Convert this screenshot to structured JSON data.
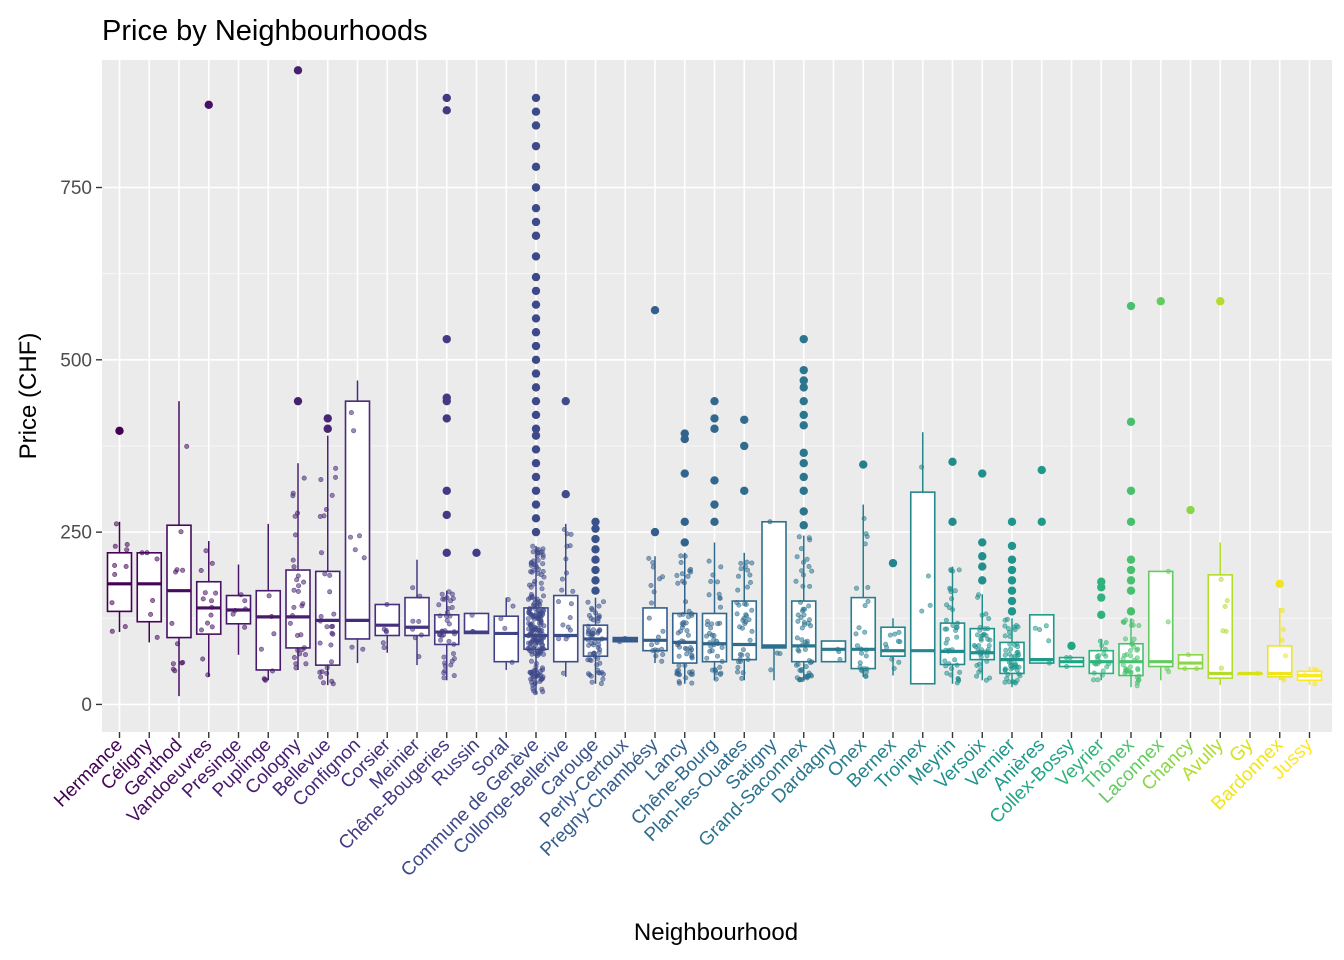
{
  "chart_data": {
    "type": "boxplot",
    "title": "Price by Neighbourhoods",
    "xlabel": "Neighbourhood",
    "ylabel": "Price (CHF)",
    "ylim": [
      -40,
      935
    ],
    "yticks": [
      0,
      250,
      500,
      750
    ],
    "grid": true,
    "legend": "none",
    "categories": [
      {
        "name": "Hermance",
        "color": "#440154",
        "q1": 135,
        "median": 175,
        "q3": 220,
        "lo": 105,
        "hi": 265,
        "outliers": [
          397
        ],
        "n": 10
      },
      {
        "name": "Céligny",
        "color": "#450559",
        "q1": 120,
        "median": 175,
        "q3": 220,
        "lo": 90,
        "hi": 220,
        "outliers": [],
        "n": 6
      },
      {
        "name": "Genthod",
        "color": "#460B5E",
        "q1": 97,
        "median": 165,
        "q3": 260,
        "lo": 12,
        "hi": 440,
        "outliers": [],
        "n": 12
      },
      {
        "name": "Vandoeuvres",
        "color": "#471063",
        "q1": 102,
        "median": 140,
        "q3": 178,
        "lo": 40,
        "hi": 237,
        "outliers": [
          870
        ],
        "n": 14
      },
      {
        "name": "Presinge",
        "color": "#481668",
        "q1": 117,
        "median": 137,
        "q3": 158,
        "lo": 72,
        "hi": 203,
        "outliers": [],
        "n": 6
      },
      {
        "name": "Puplinge",
        "color": "#481A6C",
        "q1": 50,
        "median": 127,
        "q3": 165,
        "lo": 35,
        "hi": 262,
        "outliers": [],
        "n": 8
      },
      {
        "name": "Cologny",
        "color": "#482071",
        "q1": 82,
        "median": 127,
        "q3": 195,
        "lo": 50,
        "hi": 350,
        "outliers": [
          440,
          920
        ],
        "n": 30
      },
      {
        "name": "Bellevue",
        "color": "#472575",
        "q1": 57,
        "median": 122,
        "q3": 193,
        "lo": 28,
        "hi": 390,
        "outliers": [
          400,
          415
        ],
        "n": 30
      },
      {
        "name": "Confignon",
        "color": "#472A7A",
        "q1": 95,
        "median": 122,
        "q3": 440,
        "lo": 60,
        "hi": 470,
        "outliers": [],
        "n": 8
      },
      {
        "name": "Corsier",
        "color": "#462F7E",
        "q1": 100,
        "median": 115,
        "q3": 145,
        "lo": 75,
        "hi": 145,
        "outliers": [],
        "n": 6
      },
      {
        "name": "Meinier",
        "color": "#453581",
        "q1": 100,
        "median": 112,
        "q3": 155,
        "lo": 57,
        "hi": 210,
        "outliers": [],
        "n": 8
      },
      {
        "name": "Chêne-Bougeries",
        "color": "#443983",
        "q1": 87,
        "median": 105,
        "q3": 130,
        "lo": 35,
        "hi": 165,
        "outliers": [
          220,
          275,
          310,
          415,
          440,
          445,
          530,
          862,
          880
        ],
        "n": 40
      },
      {
        "name": "Russin",
        "color": "#423E85",
        "q1": 103,
        "median": 105,
        "q3": 132,
        "lo": 103,
        "hi": 132,
        "outliers": [
          220
        ],
        "n": 3
      },
      {
        "name": "Soral",
        "color": "#404387",
        "q1": 62,
        "median": 103,
        "q3": 128,
        "lo": 50,
        "hi": 155,
        "outliers": [],
        "n": 5
      },
      {
        "name": "Commune de Genève",
        "color": "#3E4989",
        "q1": 80,
        "median": 100,
        "q3": 140,
        "lo": 15,
        "hi": 230,
        "outliers": [
          250,
          270,
          290,
          310,
          330,
          350,
          370,
          390,
          400,
          420,
          440,
          460,
          480,
          500,
          520,
          540,
          560,
          580,
          600,
          620,
          650,
          680,
          700,
          720,
          750,
          780,
          810,
          840,
          860,
          880
        ],
        "n": 200
      },
      {
        "name": "Collonge-Bellerive",
        "color": "#3C4D8A",
        "q1": 62,
        "median": 100,
        "q3": 158,
        "lo": 40,
        "hi": 262,
        "outliers": [
          305,
          440
        ],
        "n": 20
      },
      {
        "name": "Carouge",
        "color": "#3A528B",
        "q1": 70,
        "median": 95,
        "q3": 115,
        "lo": 30,
        "hi": 155,
        "outliers": [
          165,
          180,
          195,
          210,
          225,
          240,
          255,
          265
        ],
        "n": 60
      },
      {
        "name": "Perly-Certoux",
        "color": "#37598C",
        "q1": 91,
        "median": 94,
        "q3": 97,
        "lo": 91,
        "hi": 97,
        "outliers": [],
        "n": 3
      },
      {
        "name": "Pregny-Chambésy",
        "color": "#355E8D",
        "q1": 78,
        "median": 93,
        "q3": 140,
        "lo": 60,
        "hi": 215,
        "outliers": [
          250,
          572
        ],
        "n": 20
      },
      {
        "name": "Lancy",
        "color": "#33638D",
        "q1": 60,
        "median": 90,
        "q3": 132,
        "lo": 30,
        "hi": 220,
        "outliers": [
          235,
          265,
          335,
          385,
          393
        ],
        "n": 60
      },
      {
        "name": "Chêne-Bourg",
        "color": "#31688E",
        "q1": 62,
        "median": 88,
        "q3": 132,
        "lo": 35,
        "hi": 235,
        "outliers": [
          265,
          290,
          325,
          400,
          415,
          440
        ],
        "n": 40
      },
      {
        "name": "Plan-les-Ouates",
        "color": "#2F6C8E",
        "q1": 65,
        "median": 87,
        "q3": 150,
        "lo": 35,
        "hi": 220,
        "outliers": [
          310,
          375,
          413
        ],
        "n": 40
      },
      {
        "name": "Satigny",
        "color": "#2D708E",
        "q1": 82,
        "median": 85,
        "q3": 265,
        "lo": 35,
        "hi": 265,
        "outliers": [],
        "n": 4
      },
      {
        "name": "Grand-Saconnex",
        "color": "#2B758E",
        "q1": 62,
        "median": 85,
        "q3": 150,
        "lo": 35,
        "hi": 245,
        "outliers": [
          260,
          280,
          310,
          330,
          350,
          365,
          405,
          420,
          440,
          460,
          470,
          485,
          530
        ],
        "n": 60
      },
      {
        "name": "Dardagny",
        "color": "#29798E",
        "q1": 62,
        "median": 80,
        "q3": 92,
        "lo": 62,
        "hi": 92,
        "outliers": [],
        "n": 3
      },
      {
        "name": "Onex",
        "color": "#277E8E",
        "q1": 52,
        "median": 80,
        "q3": 155,
        "lo": 40,
        "hi": 290,
        "outliers": [
          348
        ],
        "n": 25
      },
      {
        "name": "Bernex",
        "color": "#25838E",
        "q1": 70,
        "median": 78,
        "q3": 112,
        "lo": 42,
        "hi": 125,
        "outliers": [
          205
        ],
        "n": 10
      },
      {
        "name": "Troinex",
        "color": "#24878E",
        "q1": 30,
        "median": 78,
        "q3": 308,
        "lo": 30,
        "hi": 395,
        "outliers": [],
        "n": 4
      },
      {
        "name": "Meyrin",
        "color": "#228C8D",
        "q1": 58,
        "median": 77,
        "q3": 118,
        "lo": 30,
        "hi": 200,
        "outliers": [
          265,
          352
        ],
        "n": 40
      },
      {
        "name": "Versoix",
        "color": "#20908D",
        "q1": 65,
        "median": 75,
        "q3": 110,
        "lo": 35,
        "hi": 160,
        "outliers": [
          180,
          200,
          215,
          235,
          335
        ],
        "n": 40
      },
      {
        "name": "Vernier",
        "color": "#1F958B",
        "q1": 45,
        "median": 65,
        "q3": 90,
        "lo": 25,
        "hi": 125,
        "outliers": [
          135,
          150,
          165,
          180,
          195,
          210,
          230,
          265
        ],
        "n": 50
      },
      {
        "name": "Anières",
        "color": "#1F9A8A",
        "q1": 60,
        "median": 65,
        "q3": 130,
        "lo": 60,
        "hi": 130,
        "outliers": [
          265,
          340
        ],
        "n": 5
      },
      {
        "name": "Collex-Bossy",
        "color": "#21A685",
        "q1": 55,
        "median": 62,
        "q3": 68,
        "lo": 55,
        "hi": 68,
        "outliers": [
          85
        ],
        "n": 3
      },
      {
        "name": "Veyrier",
        "color": "#2EB37C",
        "q1": 45,
        "median": 62,
        "q3": 78,
        "lo": 35,
        "hi": 95,
        "outliers": [
          130,
          155,
          170,
          178
        ],
        "n": 20
      },
      {
        "name": "Thônex",
        "color": "#48C16E",
        "q1": 42,
        "median": 62,
        "q3": 88,
        "lo": 25,
        "hi": 125,
        "outliers": [
          135,
          165,
          180,
          195,
          210,
          265,
          310,
          410,
          578
        ],
        "n": 40
      },
      {
        "name": "Laconnex",
        "color": "#64CB5F",
        "q1": 55,
        "median": 62,
        "q3": 193,
        "lo": 35,
        "hi": 193,
        "outliers": [
          585
        ],
        "n": 4
      },
      {
        "name": "Chancy",
        "color": "#8BD646",
        "q1": 52,
        "median": 60,
        "q3": 72,
        "lo": 52,
        "hi": 72,
        "outliers": [
          282
        ],
        "n": 3
      },
      {
        "name": "Avully",
        "color": "#B2DD2D",
        "q1": 38,
        "median": 45,
        "q3": 188,
        "lo": 28,
        "hi": 235,
        "outliers": [
          585
        ],
        "n": 6
      },
      {
        "name": "Gy",
        "color": "#D8E219",
        "q1": 45,
        "median": 45,
        "q3": 45,
        "lo": 45,
        "hi": 45,
        "outliers": [],
        "n": 1
      },
      {
        "name": "Bardonnex",
        "color": "#F0E51B",
        "q1": 40,
        "median": 45,
        "q3": 85,
        "lo": 35,
        "hi": 140,
        "outliers": [
          175
        ],
        "n": 6
      },
      {
        "name": "Jussy",
        "color": "#FDE725",
        "q1": 35,
        "median": 42,
        "q3": 48,
        "lo": 28,
        "hi": 55,
        "outliers": [],
        "n": 4
      }
    ]
  }
}
